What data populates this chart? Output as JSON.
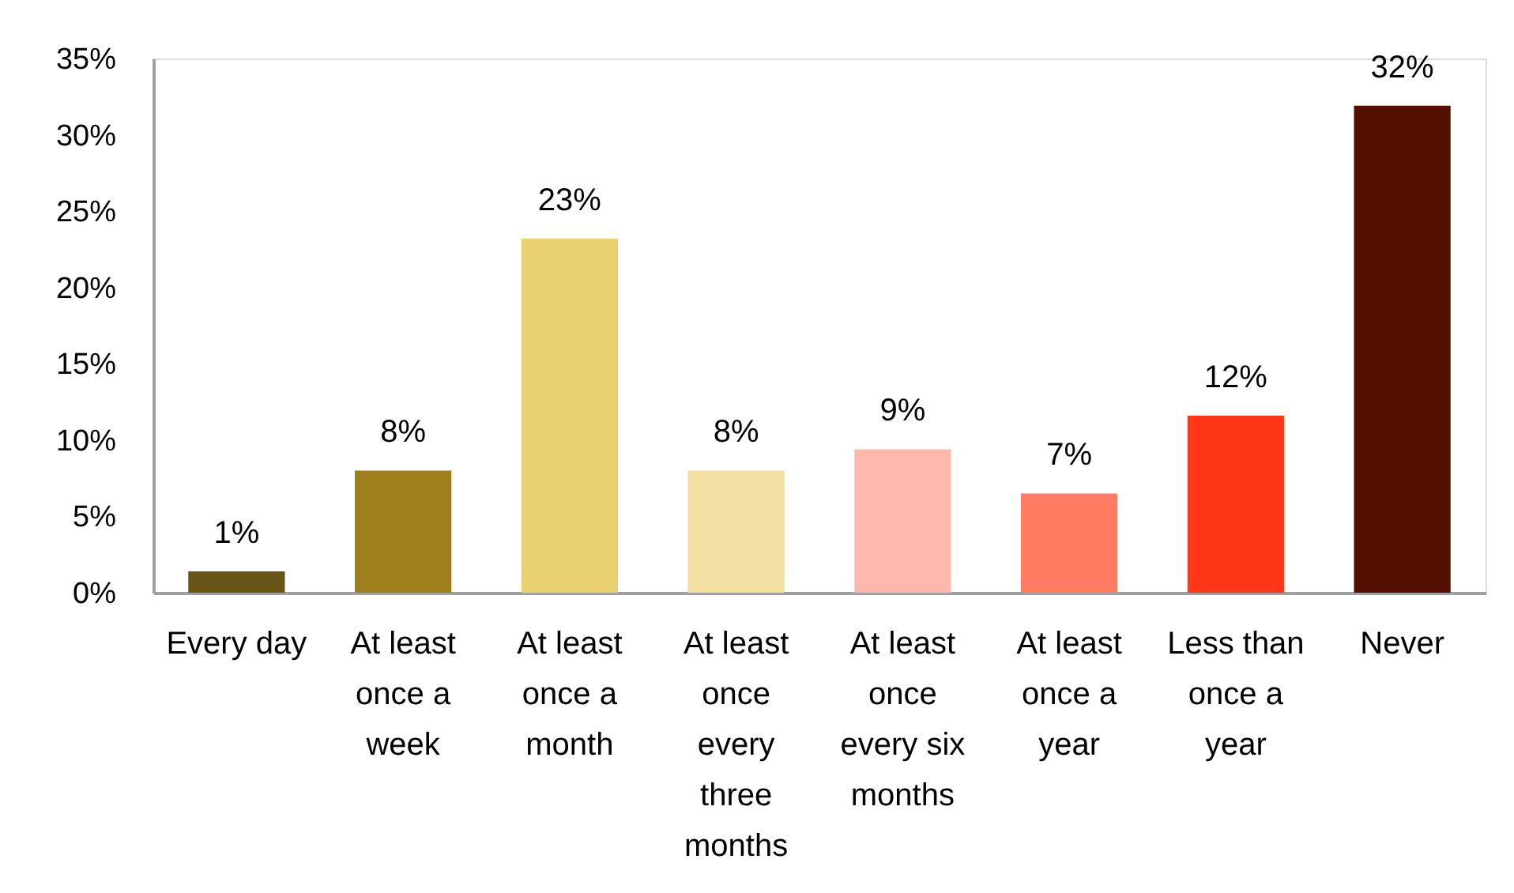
{
  "chart_data": {
    "type": "bar",
    "categories": [
      "Every day",
      "At least once a week",
      "At least once a month",
      "At least once every three months",
      "At least once every six months",
      "At least once a year",
      "Less than once a year",
      "Never"
    ],
    "values": [
      1.4,
      8.0,
      23.2,
      8.0,
      9.4,
      6.5,
      11.6,
      31.9
    ],
    "value_labels": [
      "1%",
      "8%",
      "23%",
      "8%",
      "9%",
      "7%",
      "12%",
      "32%"
    ],
    "colors": [
      "#695418",
      "#9e7f1b",
      "#e9d172",
      "#f1e0a2",
      "#fdb9ad",
      "#ff7b61",
      "#ff3718",
      "#530f00"
    ],
    "ylim": [
      0,
      35
    ],
    "yticks": [
      {
        "value": 0,
        "label": "0%"
      },
      {
        "value": 5,
        "label": "5%"
      },
      {
        "value": 10,
        "label": "10%"
      },
      {
        "value": 15,
        "label": "15%"
      },
      {
        "value": 20,
        "label": "20%"
      },
      {
        "value": 25,
        "label": "25%"
      },
      {
        "value": 30,
        "label": "30%"
      },
      {
        "value": 35,
        "label": "35%"
      }
    ]
  }
}
